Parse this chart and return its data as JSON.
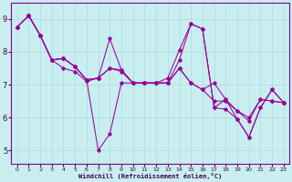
{
  "xlabel": "Windchill (Refroidissement éolien,°C)",
  "bg_color": "#c8eef0",
  "grid_color": "#b0d8db",
  "line_color": "#990099",
  "spine_color": "#880088",
  "xlim": [
    -0.5,
    23.5
  ],
  "ylim": [
    4.6,
    9.5
  ],
  "xticks": [
    0,
    1,
    2,
    3,
    4,
    5,
    6,
    7,
    8,
    9,
    10,
    11,
    12,
    13,
    14,
    15,
    16,
    17,
    18,
    19,
    20,
    21,
    22,
    23
  ],
  "yticks": [
    5,
    6,
    7,
    8,
    9
  ],
  "lines": [
    [
      8.75,
      9.1,
      8.5,
      7.75,
      7.8,
      7.55,
      7.15,
      5.0,
      5.5,
      7.05,
      7.05,
      7.05,
      7.05,
      7.05,
      7.75,
      8.85,
      8.7,
      6.3,
      6.25,
      5.95,
      5.4,
      6.3,
      6.85,
      6.45
    ],
    [
      8.75,
      9.1,
      8.5,
      7.75,
      7.8,
      7.55,
      7.15,
      7.2,
      8.4,
      7.45,
      7.05,
      7.05,
      7.05,
      7.2,
      8.05,
      8.85,
      8.7,
      6.3,
      6.55,
      5.95,
      5.4,
      6.3,
      6.85,
      6.45
    ],
    [
      8.75,
      9.1,
      8.5,
      7.75,
      7.5,
      7.4,
      7.1,
      7.2,
      7.5,
      7.4,
      7.05,
      7.05,
      7.05,
      7.05,
      7.5,
      7.05,
      6.85,
      6.5,
      6.5,
      6.2,
      6.0,
      6.55,
      6.5,
      6.45
    ],
    [
      8.75,
      9.1,
      8.5,
      7.75,
      7.8,
      7.55,
      7.15,
      7.2,
      7.5,
      7.45,
      7.05,
      7.05,
      7.05,
      7.05,
      7.5,
      7.05,
      6.85,
      7.05,
      6.55,
      6.2,
      5.9,
      6.55,
      6.5,
      6.45
    ]
  ]
}
